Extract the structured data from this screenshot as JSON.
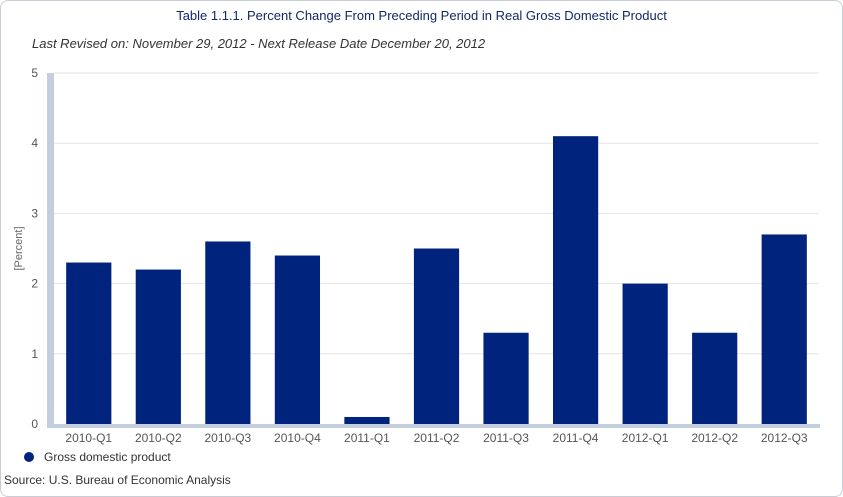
{
  "chart_data": {
    "type": "bar",
    "title": "Table 1.1.1. Percent Change From Preceding Period in Real Gross Domestic Product",
    "subtitle": "Last Revised on: November 29, 2012 - Next Release Date December 20, 2012",
    "xlabel": "",
    "ylabel": "[Percent]",
    "ylim": [
      0,
      5
    ],
    "yticks": [
      "0",
      "1",
      "2",
      "3",
      "4",
      "5"
    ],
    "grid": true,
    "legend_position": "bottom-left",
    "categories": [
      "2010-Q1",
      "2010-Q2",
      "2010-Q3",
      "2010-Q4",
      "2011-Q1",
      "2011-Q2",
      "2011-Q3",
      "2011-Q4",
      "2012-Q1",
      "2012-Q2",
      "2012-Q3"
    ],
    "series": [
      {
        "name": "Gross domestic product",
        "color": "#00237e",
        "values": [
          2.3,
          2.2,
          2.6,
          2.4,
          0.1,
          2.5,
          1.3,
          4.1,
          2.0,
          1.3,
          2.7
        ]
      }
    ],
    "source": "Source: U.S. Bureau of Economic Analysis"
  }
}
